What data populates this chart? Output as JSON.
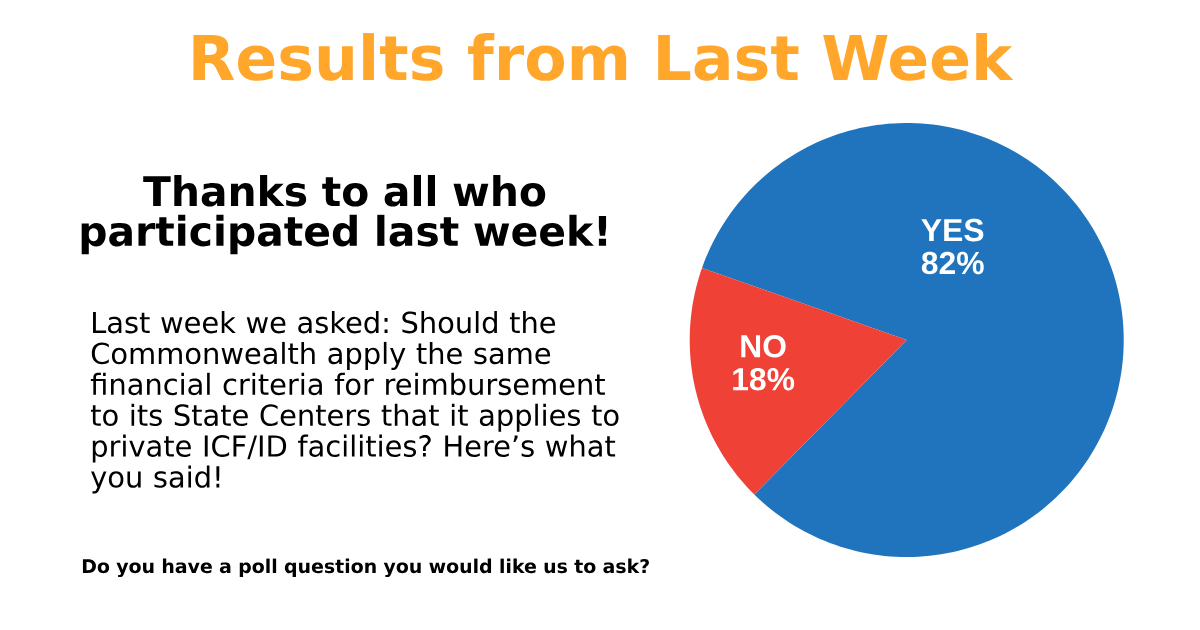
{
  "chart_data": {
    "type": "pie",
    "title": "Results from Last Week",
    "subtitle": "Thanks to all who participated last week!",
    "categories": [
      "YES",
      "NO"
    ],
    "values": [
      82,
      18
    ],
    "colors": [
      "#1f74bd",
      "#ef4136"
    ],
    "value_labels": [
      "82%",
      "18%"
    ],
    "annotations": [
      "Last week we asked: Should the Commonwealth apply the same financial criteria for reimbursement to its State Centers that it applies to private ICF/ID facilities? Here’s what you said!",
      "Do you have a poll question you would like us to ask?"
    ]
  }
}
